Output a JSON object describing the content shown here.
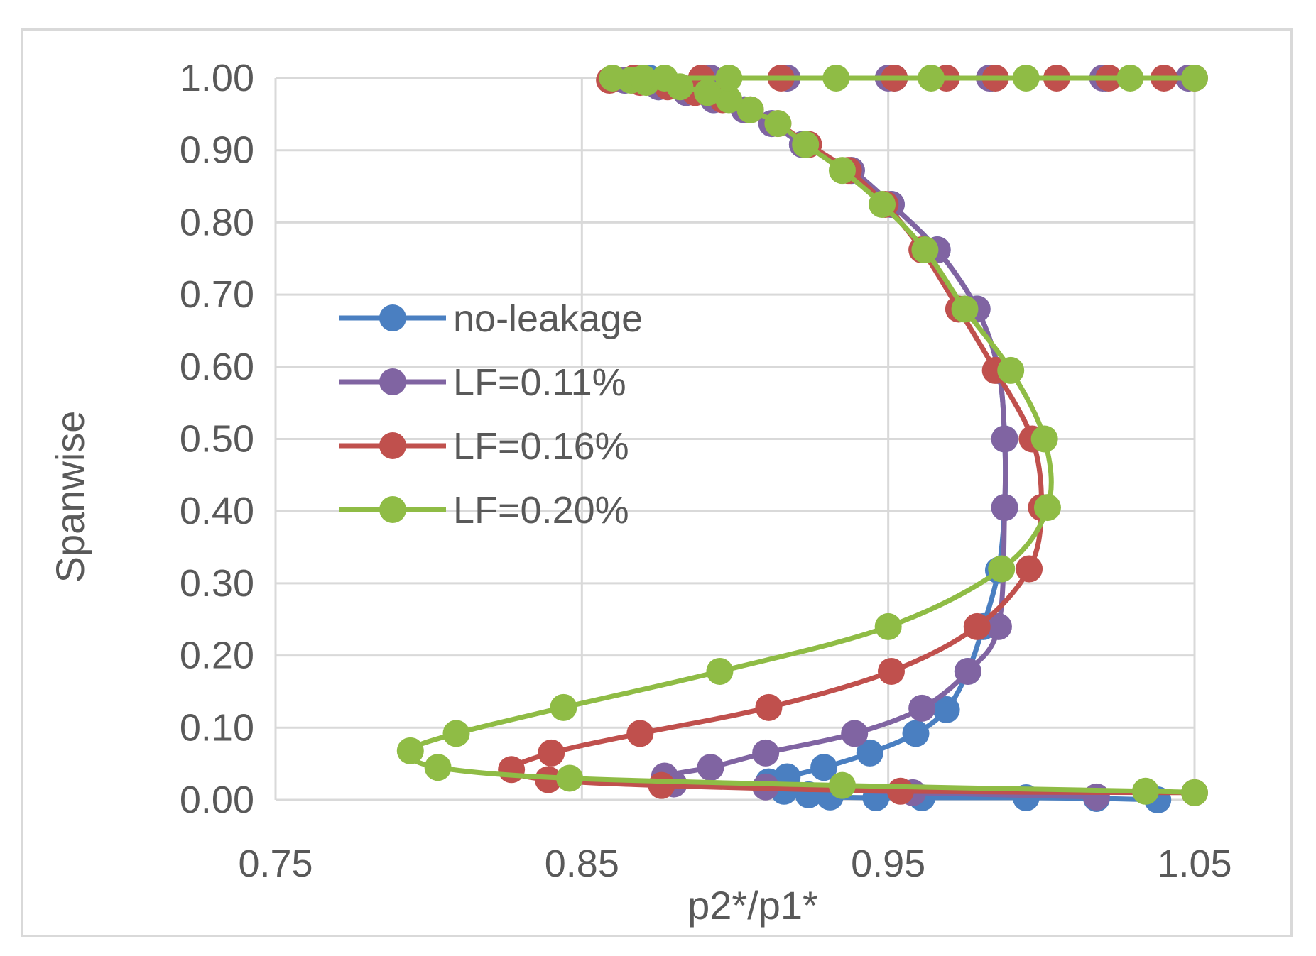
{
  "chart_data": {
    "type": "line",
    "title": "",
    "xlabel": "p2*/p1*",
    "ylabel": "Spanwise",
    "xlim": [
      0.75,
      1.05
    ],
    "ylim": [
      0.0,
      1.0
    ],
    "x_ticks": [
      "0.75",
      "0.85",
      "0.95",
      "1.05"
    ],
    "y_ticks": [
      "0.00",
      "0.10",
      "0.20",
      "0.30",
      "0.40",
      "0.50",
      "0.60",
      "0.70",
      "0.80",
      "0.90",
      "1.00"
    ],
    "grid": true,
    "legend_position": "center-left",
    "series": [
      {
        "name": "no-leakage",
        "color": "#4a7fc1",
        "x": [
          1.038,
          1.018,
          0.995,
          0.961,
          0.946,
          0.931,
          0.924,
          0.916,
          0.911,
          0.917,
          0.929,
          0.944,
          0.959,
          0.969,
          0.976,
          0.981,
          0.986,
          0.988,
          0.988,
          0.986,
          0.979,
          0.966,
          0.951,
          0.938,
          0.922,
          0.912,
          0.903,
          0.893,
          0.884,
          0.875,
          0.864,
          0.872,
          0.892,
          0.917,
          0.952,
          0.984,
          1.021,
          1.048
        ],
        "y": [
          0.0,
          0.002,
          0.003,
          0.003,
          0.003,
          0.004,
          0.007,
          0.012,
          0.025,
          0.032,
          0.045,
          0.065,
          0.092,
          0.125,
          0.178,
          0.24,
          0.318,
          0.405,
          0.5,
          0.595,
          0.68,
          0.762,
          0.825,
          0.872,
          0.908,
          0.937,
          0.956,
          0.97,
          0.98,
          0.988,
          0.997,
          1.0,
          1.0,
          1.0,
          1.0,
          1.0,
          1.0,
          1.0
        ]
      },
      {
        "name": "LF=0.11%",
        "color": "#8064a2",
        "x": [
          1.018,
          0.958,
          0.91,
          0.88,
          0.877,
          0.892,
          0.91,
          0.939,
          0.961,
          0.976,
          0.986,
          0.988,
          0.988,
          0.986,
          0.979,
          0.966,
          0.951,
          0.938,
          0.922,
          0.912,
          0.903,
          0.893,
          0.884,
          0.875,
          0.864,
          0.87,
          0.892,
          0.917,
          0.95,
          0.983,
          1.02,
          1.048
        ],
        "y": [
          0.004,
          0.01,
          0.018,
          0.022,
          0.033,
          0.045,
          0.065,
          0.092,
          0.127,
          0.178,
          0.24,
          0.405,
          0.5,
          0.595,
          0.68,
          0.762,
          0.825,
          0.872,
          0.908,
          0.937,
          0.956,
          0.97,
          0.98,
          0.988,
          0.997,
          1.0,
          1.0,
          1.0,
          1.0,
          1.0,
          1.0,
          1.0
        ]
      },
      {
        "name": "LF=0.16%",
        "color": "#c0504d",
        "x": [
          1.05,
          0.954,
          0.876,
          0.839,
          0.827,
          0.84,
          0.869,
          0.911,
          0.951,
          0.979,
          0.996,
          1.0,
          0.997,
          0.985,
          0.973,
          0.961,
          0.949,
          0.937,
          0.924,
          0.914,
          0.905,
          0.896,
          0.887,
          0.878,
          0.869,
          0.859,
          0.867,
          0.889,
          0.915,
          0.952,
          0.969,
          0.985,
          1.005,
          1.022,
          1.04,
          1.05
        ],
        "y": [
          0.01,
          0.012,
          0.02,
          0.028,
          0.042,
          0.065,
          0.092,
          0.128,
          0.178,
          0.24,
          0.32,
          0.405,
          0.5,
          0.595,
          0.68,
          0.762,
          0.825,
          0.872,
          0.908,
          0.937,
          0.956,
          0.97,
          0.98,
          0.988,
          0.994,
          0.997,
          1.0,
          1.0,
          1.0,
          1.0,
          1.0,
          1.0,
          1.0,
          1.0,
          1.0,
          1.0
        ]
      },
      {
        "name": "LF=0.20%",
        "color": "#8fbc45",
        "x": [
          1.05,
          1.034,
          0.935,
          0.846,
          0.803,
          0.794,
          0.809,
          0.844,
          0.895,
          0.95,
          0.987,
          1.002,
          1.001,
          0.99,
          0.975,
          0.962,
          0.948,
          0.935,
          0.923,
          0.914,
          0.905,
          0.898,
          0.891,
          0.882,
          0.871,
          0.866,
          0.86,
          0.87,
          0.877,
          0.898,
          0.933,
          0.964,
          0.995,
          1.029,
          1.05
        ],
        "y": [
          0.01,
          0.012,
          0.02,
          0.03,
          0.045,
          0.068,
          0.092,
          0.128,
          0.178,
          0.24,
          0.32,
          0.405,
          0.5,
          0.595,
          0.68,
          0.762,
          0.825,
          0.872,
          0.908,
          0.937,
          0.956,
          0.97,
          0.98,
          0.988,
          0.994,
          0.997,
          1.0,
          1.0,
          1.0,
          1.0,
          1.0,
          1.0,
          1.0,
          1.0,
          1.0
        ]
      }
    ]
  }
}
